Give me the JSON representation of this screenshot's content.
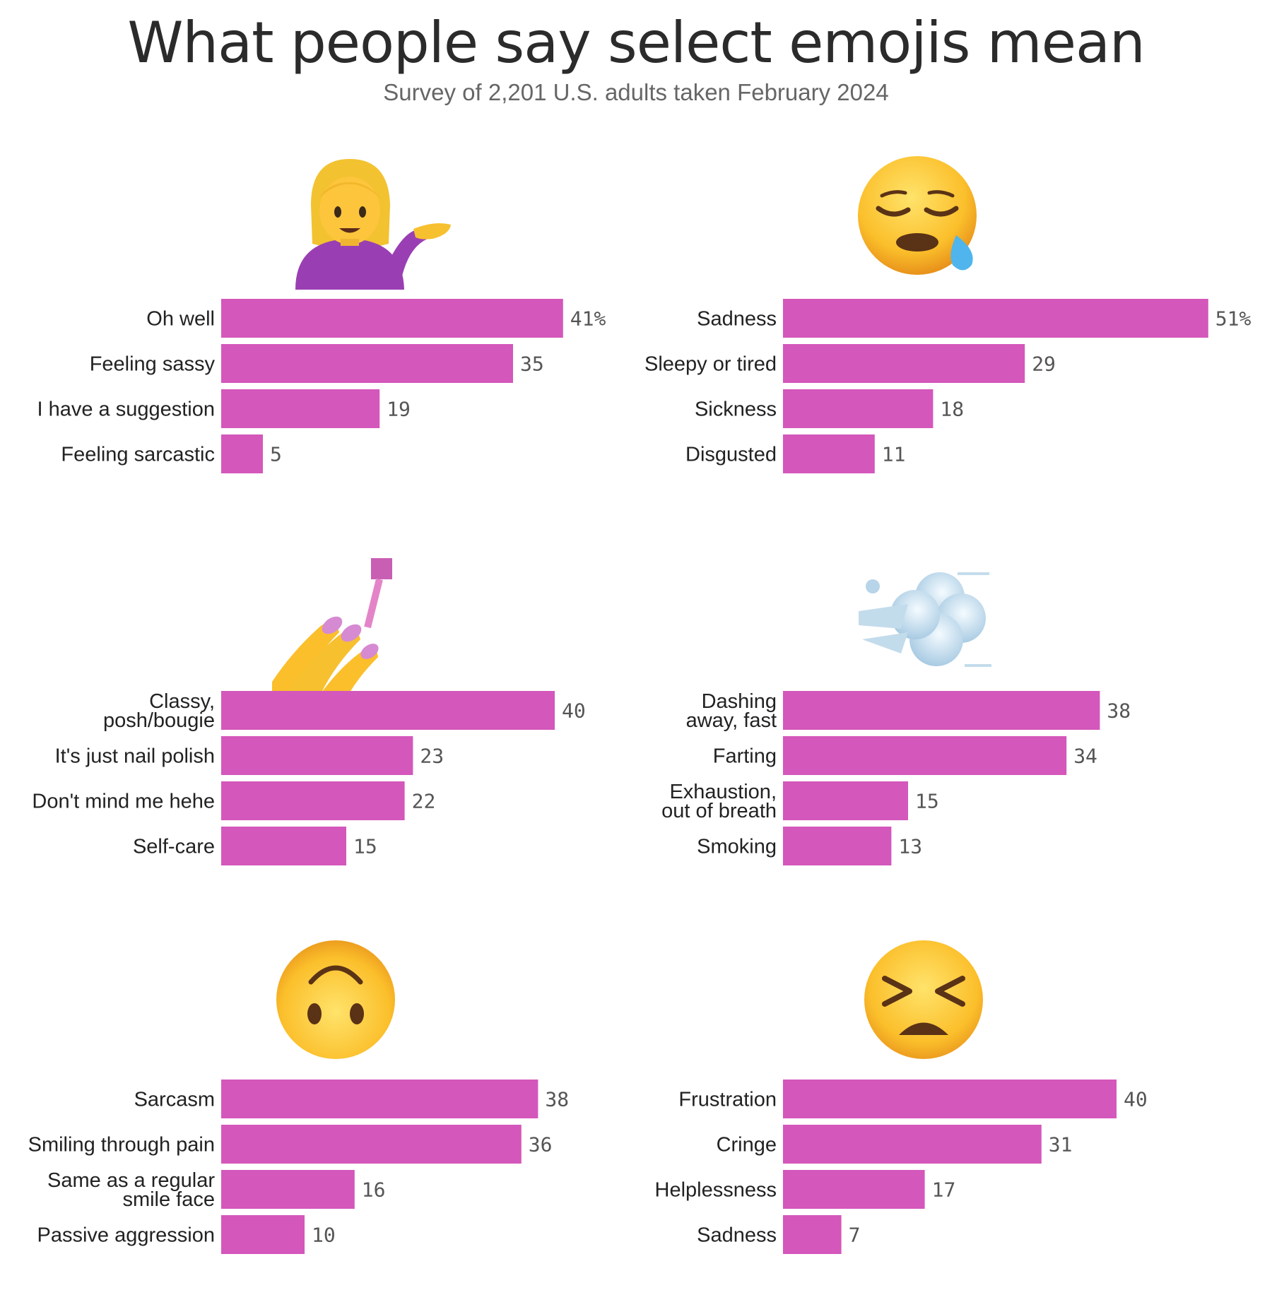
{
  "title": "What people say select emojis mean",
  "subtitle": "Survey of 2,201 U.S. adults taken February 2024",
  "colors": {
    "bar": "#d457bb",
    "text": "#222222",
    "value": "#555555"
  },
  "chart_data": [
    {
      "type": "bar",
      "icon": "person-tipping-hand-emoji",
      "categories": [
        [
          "Oh well"
        ],
        [
          "Feeling sassy"
        ],
        [
          "I have a suggestion"
        ],
        [
          "Feeling sarcastic"
        ]
      ],
      "values": [
        41,
        35,
        19,
        5
      ],
      "value_labels": [
        "41%",
        "35",
        "19",
        "5"
      ]
    },
    {
      "type": "bar",
      "icon": "sleepy-face-emoji",
      "categories": [
        [
          "Sadness"
        ],
        [
          "Sleepy or tired"
        ],
        [
          "Sickness"
        ],
        [
          "Disgusted"
        ]
      ],
      "values": [
        51,
        29,
        18,
        11
      ],
      "value_labels": [
        "51%",
        "29",
        "18",
        "11"
      ]
    },
    {
      "type": "bar",
      "icon": "nail-polish-emoji",
      "categories": [
        [
          "Classy,",
          "posh/bougie"
        ],
        [
          "It's just nail polish"
        ],
        [
          "Don't mind me hehe"
        ],
        [
          "Self-care"
        ]
      ],
      "values": [
        40,
        23,
        22,
        15
      ],
      "value_labels": [
        "40",
        "23",
        "22",
        "15"
      ]
    },
    {
      "type": "bar",
      "icon": "dashing-away-emoji",
      "categories": [
        [
          "Dashing",
          "away, fast"
        ],
        [
          "Farting"
        ],
        [
          "Exhaustion,",
          "out of breath"
        ],
        [
          "Smoking"
        ]
      ],
      "values": [
        38,
        34,
        15,
        13
      ],
      "value_labels": [
        "38",
        "34",
        "15",
        "13"
      ]
    },
    {
      "type": "bar",
      "icon": "upside-down-face-emoji",
      "categories": [
        [
          "Sarcasm"
        ],
        [
          "Smiling through pain"
        ],
        [
          "Same as a regular",
          "smile face"
        ],
        [
          "Passive aggression"
        ]
      ],
      "values": [
        38,
        36,
        16,
        10
      ],
      "value_labels": [
        "38",
        "36",
        "16",
        "10"
      ]
    },
    {
      "type": "bar",
      "icon": "persevering-face-emoji",
      "categories": [
        [
          "Frustration"
        ],
        [
          "Cringe"
        ],
        [
          "Helplessness"
        ],
        [
          "Sadness"
        ]
      ],
      "values": [
        40,
        31,
        17,
        7
      ],
      "value_labels": [
        "40",
        "31",
        "17",
        "7"
      ]
    }
  ]
}
